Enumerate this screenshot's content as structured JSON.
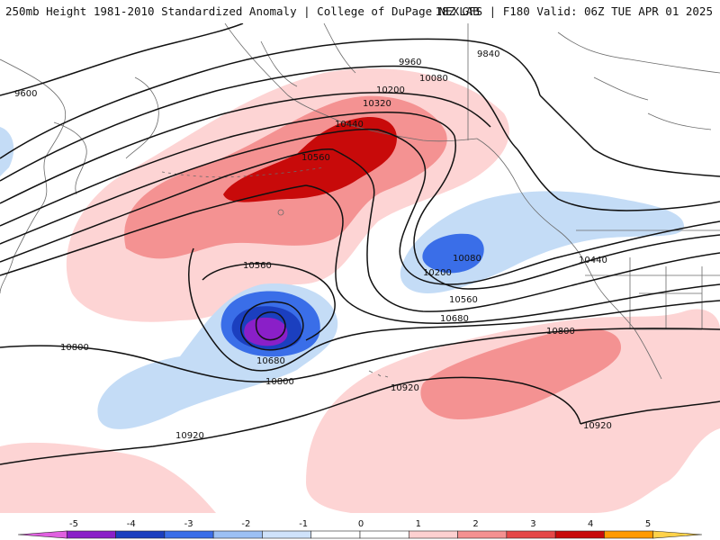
{
  "header": {
    "left_title": "250mb Height 1981-2010 Standardized Anomaly | College of DuPage NEXLAB",
    "right_title": "18Z GFS | F180 Valid: 06Z TUE APR 01 2025"
  },
  "map": {
    "product": "250mb Height Standardized Anomaly",
    "contour_labels": [
      "9600",
      "9840",
      "9960",
      "10080",
      "10200",
      "10320",
      "10440",
      "10560",
      "10560",
      "10080",
      "10200",
      "10440",
      "10560",
      "10680",
      "10680",
      "10800",
      "10800",
      "10800",
      "10920",
      "10920",
      "10920"
    ]
  },
  "colorbar": {
    "ticks": [
      "-5",
      "-4",
      "-3",
      "-2",
      "-1",
      "0",
      "1",
      "2",
      "3",
      "4",
      "5"
    ],
    "colors": [
      "#e060e0",
      "#8a1fc8",
      "#1b3fbf",
      "#3a6ee8",
      "#9cc0f4",
      "#cfe2fa",
      "#ffffff",
      "#ffffff",
      "#fdd0d0",
      "#f49090",
      "#e54848",
      "#c80a0a",
      "#ff9a00",
      "#ffd24a"
    ]
  }
}
